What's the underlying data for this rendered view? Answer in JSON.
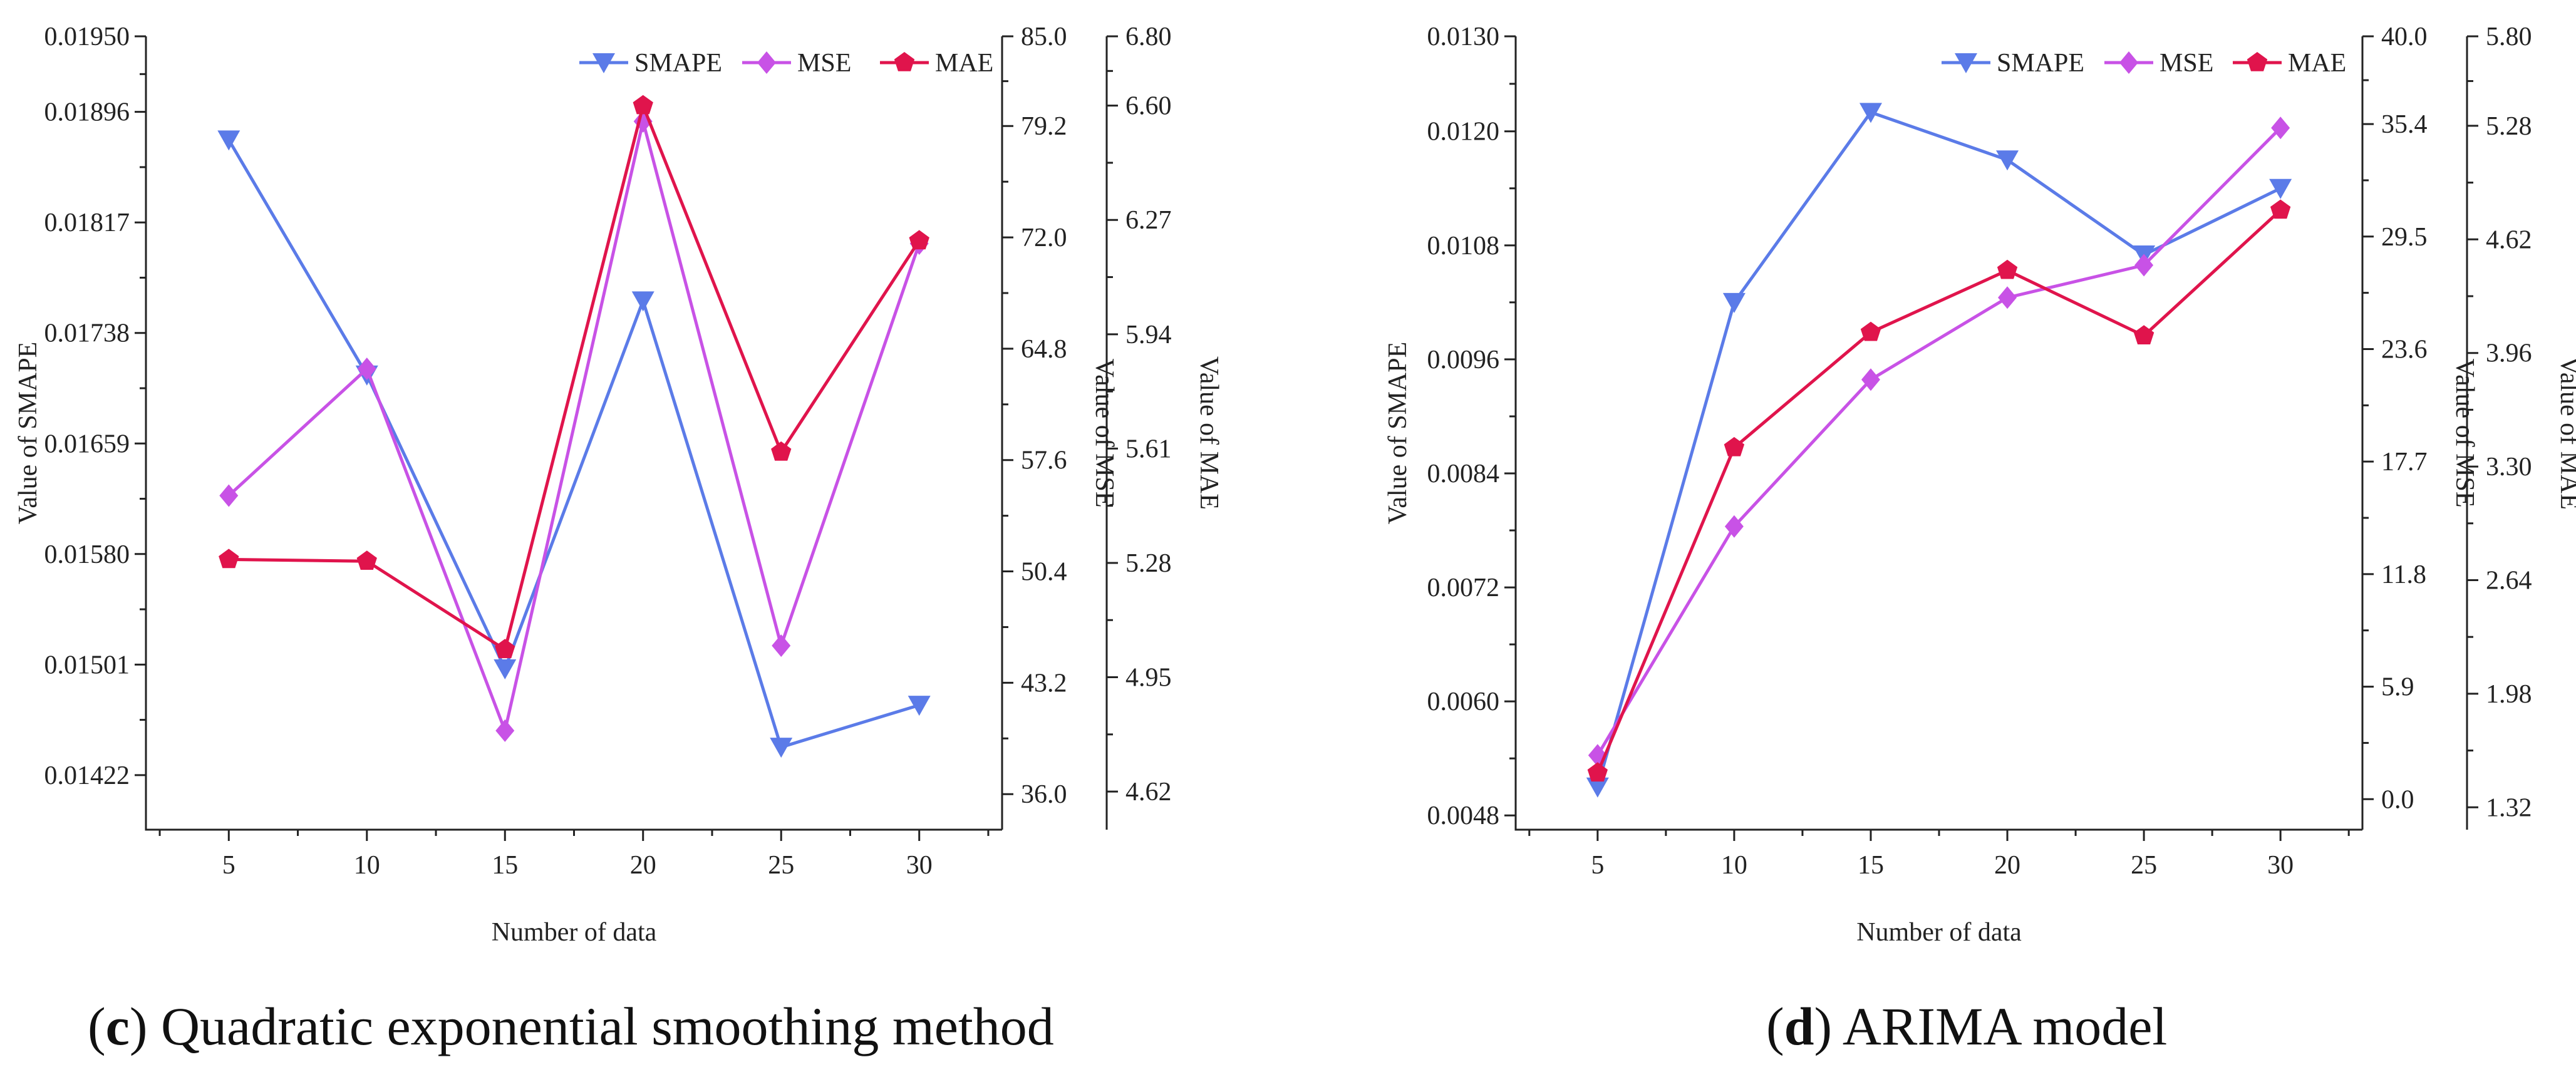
{
  "colors": {
    "smape": "#5B7BE8",
    "mse": "#C852E6",
    "mae": "#E0144C",
    "axis": "#222222"
  },
  "chart_data": [
    {
      "type": "line",
      "caption_letter": "c",
      "caption_text": " Quadratic exponential smoothing method",
      "xlabel": "Number of data",
      "x": [
        5,
        10,
        15,
        20,
        25,
        30
      ],
      "axes": {
        "left": {
          "label": "Value of SMAPE",
          "ylim": [
            0.01383,
            0.0195
          ],
          "ticks": [
            "0.01422",
            "0.01501",
            "0.01580",
            "0.01659",
            "0.01738",
            "0.01817",
            "0.01896",
            "0.01950"
          ]
        },
        "right1": {
          "label": "Value of MSE",
          "ylim": [
            33.7,
            85.0
          ],
          "ticks": [
            "36.0",
            "43.2",
            "50.4",
            "57.6",
            "64.8",
            "72.0",
            "79.2",
            "85.0"
          ]
        },
        "right2": {
          "label": "Value of MAE",
          "ylim": [
            4.51,
            6.8
          ],
          "ticks": [
            "4.62",
            "4.95",
            "5.28",
            "5.61",
            "5.94",
            "6.27",
            "6.60",
            "6.80"
          ]
        }
      },
      "legend": [
        "SMAPE",
        "MSE",
        "MAE"
      ],
      "series": [
        {
          "name": "SMAPE",
          "axis": "left",
          "marker": "triangle-down",
          "values": [
            0.01876,
            0.01708,
            0.01498,
            0.01761,
            0.01442,
            0.01472
          ]
        },
        {
          "name": "MSE",
          "axis": "right1",
          "marker": "diamond",
          "values": [
            55.3,
            63.5,
            40.1,
            79.5,
            45.6,
            71.6
          ]
        },
        {
          "name": "MAE",
          "axis": "right2",
          "marker": "pentagon",
          "values": [
            5.29,
            5.285,
            5.03,
            6.6,
            5.6,
            6.21
          ]
        }
      ]
    },
    {
      "type": "line",
      "caption_letter": "d",
      "caption_text": " ARIMA model",
      "xlabel": "Number of data",
      "x": [
        5,
        10,
        15,
        20,
        25,
        30
      ],
      "axes": {
        "left": {
          "label": "Value of SMAPE",
          "ylim": [
            0.00465,
            0.013
          ],
          "ticks": [
            "0.0048",
            "0.0060",
            "0.0072",
            "0.0084",
            "0.0096",
            "0.0108",
            "0.0120",
            "0.0130"
          ]
        },
        "right1": {
          "label": "Value of MSE",
          "ylim": [
            -1.6,
            40.0
          ],
          "ticks": [
            "0.0",
            "5.9",
            "11.8",
            "17.7",
            "23.6",
            "29.5",
            "35.4",
            "40.0"
          ]
        },
        "right2": {
          "label": "Value of MAE",
          "ylim": [
            1.19,
            5.8
          ],
          "ticks": [
            "1.32",
            "1.98",
            "2.64",
            "3.30",
            "3.96",
            "4.62",
            "5.28",
            "5.80"
          ]
        }
      },
      "legend": [
        "SMAPE",
        "MSE",
        "MAE"
      ],
      "series": [
        {
          "name": "SMAPE",
          "axis": "left",
          "marker": "triangle-down",
          "values": [
            0.0051,
            0.0102,
            0.0122,
            0.0117,
            0.0107,
            0.0114
          ]
        },
        {
          "name": "MSE",
          "axis": "right1",
          "marker": "diamond",
          "values": [
            2.3,
            14.3,
            22.0,
            26.3,
            28.0,
            35.2
          ]
        },
        {
          "name": "MAE",
          "axis": "right2",
          "marker": "pentagon",
          "values": [
            1.52,
            3.41,
            4.08,
            4.44,
            4.06,
            4.79
          ]
        }
      ]
    }
  ]
}
